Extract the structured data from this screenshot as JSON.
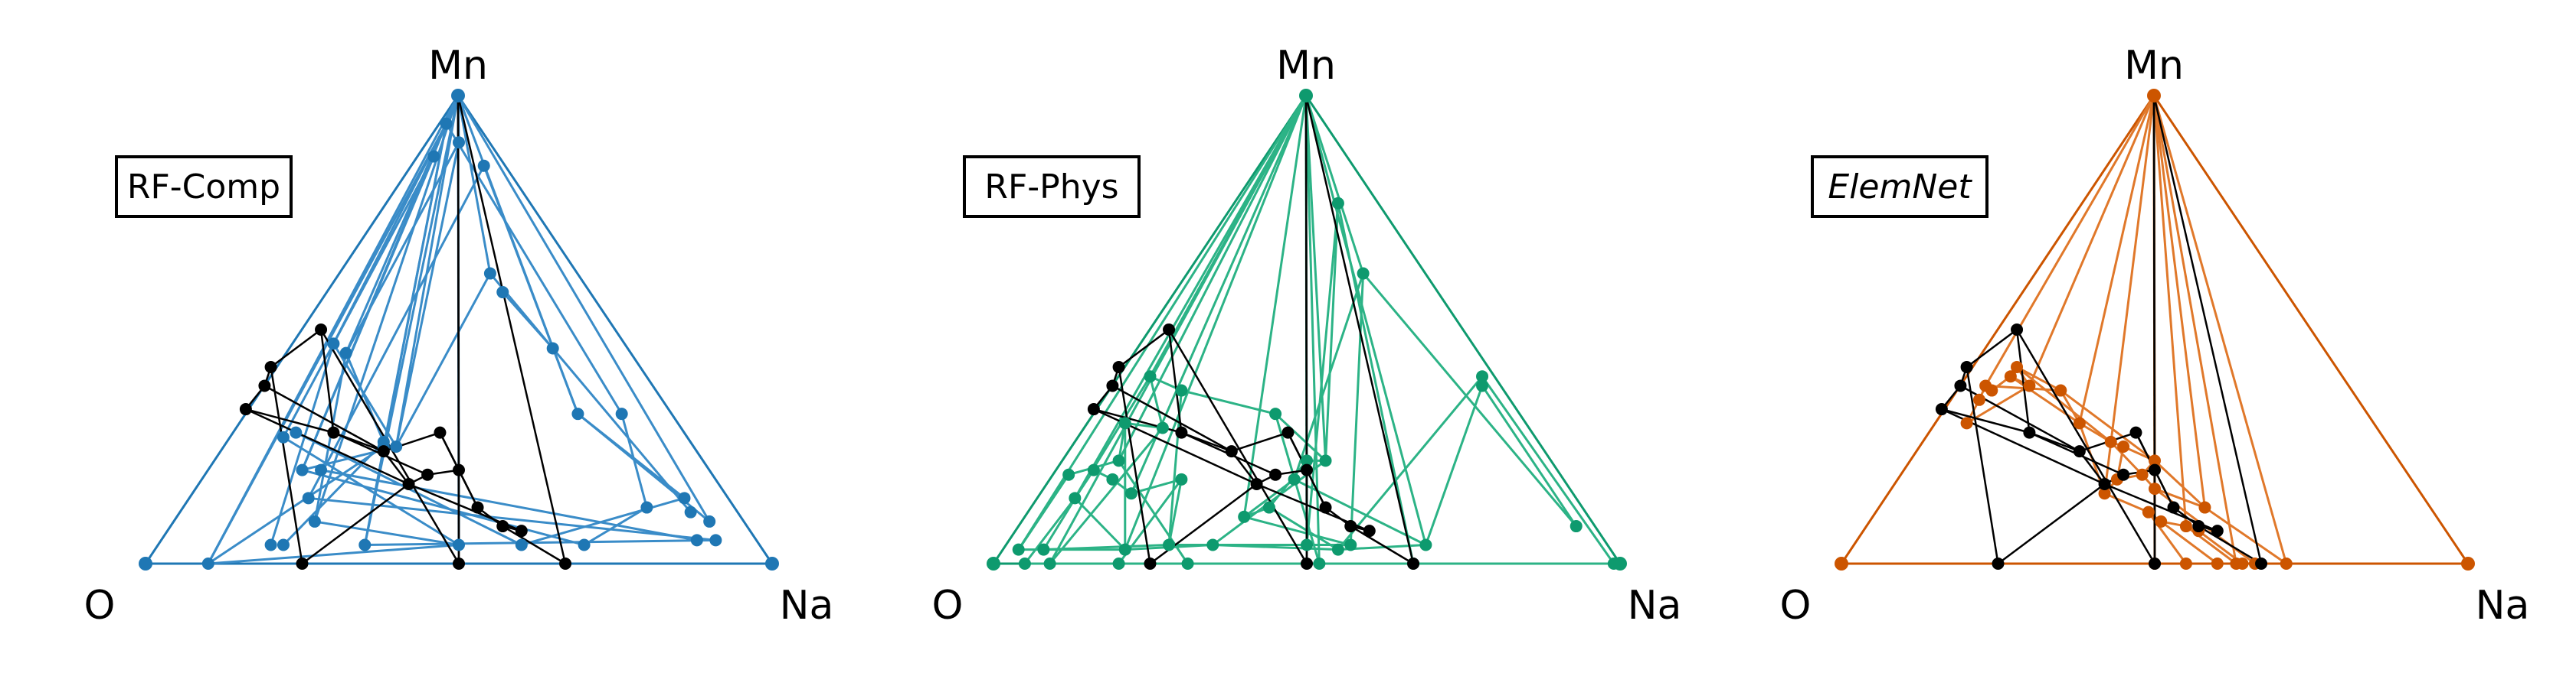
{
  "vertices": {
    "top": "Mn",
    "left": "O",
    "right": "Na"
  },
  "panels": [
    {
      "id": "rf-comp",
      "model_label": "RF-Comp",
      "italic": false,
      "color": "#1f77b4",
      "color_light": "#3a8cc8"
    },
    {
      "id": "rf-phys",
      "model_label": "RF-Phys",
      "italic": false,
      "color": "#0e9a6e",
      "color_light": "#2cb386"
    },
    {
      "id": "elemnet",
      "model_label": "ElemNet",
      "italic": true,
      "color": "#cc5500",
      "color_light": "#e0782a"
    }
  ],
  "reference_color": "#000000",
  "chart_data": {
    "type": "ternary-phase-diagram",
    "components": [
      "Mn",
      "O",
      "Na"
    ],
    "reference_hull": {
      "color": "#000000",
      "points": [
        [
          0.5,
          0.0
        ],
        [
          0.25,
          0.0
        ],
        [
          0.67,
          0.0
        ],
        [
          0.28,
          0.5
        ],
        [
          0.2,
          0.42
        ],
        [
          0.19,
          0.38
        ],
        [
          0.16,
          0.33
        ],
        [
          0.3,
          0.28
        ],
        [
          0.38,
          0.24
        ],
        [
          0.47,
          0.28
        ],
        [
          0.42,
          0.17
        ],
        [
          0.45,
          0.19
        ],
        [
          0.5,
          0.2
        ],
        [
          0.53,
          0.12
        ],
        [
          0.57,
          0.08
        ],
        [
          0.6,
          0.07
        ]
      ],
      "edges": [
        [
          0,
          3
        ],
        [
          1,
          4
        ],
        [
          2,
          14
        ],
        [
          3,
          4
        ],
        [
          3,
          7
        ],
        [
          4,
          5
        ],
        [
          5,
          6
        ],
        [
          6,
          7
        ],
        [
          7,
          8
        ],
        [
          8,
          9
        ],
        [
          8,
          10
        ],
        [
          9,
          12
        ],
        [
          10,
          11
        ],
        [
          11,
          12
        ],
        [
          12,
          13
        ],
        [
          13,
          14
        ],
        [
          14,
          15
        ],
        [
          10,
          15
        ],
        [
          1,
          10
        ],
        [
          0,
          12
        ],
        [
          5,
          8
        ],
        [
          6,
          10
        ],
        [
          7,
          11
        ],
        [
          9,
          13
        ]
      ]
    },
    "panels": [
      {
        "model": "RF-Comp",
        "points": [
          [
            0.1,
            0.0
          ],
          [
            0.2,
            0.04
          ],
          [
            0.22,
            0.04
          ],
          [
            0.35,
            0.04
          ],
          [
            0.88,
            0.05
          ],
          [
            0.91,
            0.05
          ],
          [
            0.9,
            0.09
          ],
          [
            0.87,
            0.11
          ],
          [
            0.48,
            0.94
          ],
          [
            0.5,
            0.9
          ],
          [
            0.46,
            0.87
          ],
          [
            0.54,
            0.85
          ],
          [
            0.55,
            0.62
          ],
          [
            0.57,
            0.58
          ],
          [
            0.65,
            0.46
          ],
          [
            0.69,
            0.32
          ],
          [
            0.76,
            0.32
          ],
          [
            0.3,
            0.47
          ],
          [
            0.32,
            0.45
          ],
          [
            0.38,
            0.25
          ],
          [
            0.38,
            0.26
          ],
          [
            0.4,
            0.25
          ],
          [
            0.22,
            0.27
          ],
          [
            0.24,
            0.28
          ],
          [
            0.25,
            0.2
          ],
          [
            0.28,
            0.2
          ],
          [
            0.26,
            0.14
          ],
          [
            0.27,
            0.09
          ],
          [
            0.86,
            0.14
          ],
          [
            0.8,
            0.12
          ],
          [
            0.5,
            0.04
          ],
          [
            0.6,
            0.04
          ],
          [
            0.7,
            0.04
          ]
        ],
        "edges": [
          [
            8,
            0
          ],
          [
            8,
            3
          ],
          [
            8,
            17
          ],
          [
            8,
            19
          ],
          [
            9,
            18
          ],
          [
            9,
            21
          ],
          [
            10,
            22
          ],
          [
            10,
            24
          ],
          [
            11,
            26
          ],
          [
            11,
            15
          ],
          [
            8,
            16
          ],
          [
            12,
            14
          ],
          [
            13,
            14
          ],
          [
            14,
            7
          ],
          [
            15,
            6
          ],
          [
            15,
            28
          ],
          [
            16,
            29
          ],
          [
            17,
            1
          ],
          [
            18,
            27
          ],
          [
            19,
            0
          ],
          [
            20,
            2
          ],
          [
            21,
            24
          ],
          [
            22,
            30
          ],
          [
            23,
            31
          ],
          [
            24,
            32
          ],
          [
            25,
            4
          ],
          [
            26,
            5
          ],
          [
            27,
            30
          ],
          [
            28,
            31
          ],
          [
            29,
            32
          ],
          [
            12,
            21
          ],
          [
            17,
            21
          ],
          [
            18,
            20
          ],
          [
            3,
            5
          ],
          [
            0,
            30
          ]
        ]
      },
      {
        "model": "RF-Phys",
        "points": [
          [
            0.04,
            0.03
          ],
          [
            0.08,
            0.03
          ],
          [
            0.05,
            0.0
          ],
          [
            0.09,
            0.0
          ],
          [
            0.2,
            0.0
          ],
          [
            0.31,
            0.0
          ],
          [
            0.52,
            0.0
          ],
          [
            0.67,
            0.0
          ],
          [
            0.99,
            0.0
          ],
          [
            0.21,
            0.03
          ],
          [
            0.28,
            0.04
          ],
          [
            0.35,
            0.04
          ],
          [
            0.5,
            0.04
          ],
          [
            0.55,
            0.03
          ],
          [
            0.57,
            0.04
          ],
          [
            0.69,
            0.04
          ],
          [
            0.93,
            0.08
          ],
          [
            0.55,
            0.77
          ],
          [
            0.59,
            0.62
          ],
          [
            0.78,
            0.4
          ],
          [
            0.78,
            0.38
          ],
          [
            0.13,
            0.14
          ],
          [
            0.16,
            0.2
          ],
          [
            0.19,
            0.18
          ],
          [
            0.22,
            0.15
          ],
          [
            0.3,
            0.18
          ],
          [
            0.12,
            0.19
          ],
          [
            0.2,
            0.22
          ],
          [
            0.21,
            0.3
          ],
          [
            0.27,
            0.29
          ],
          [
            0.25,
            0.4
          ],
          [
            0.3,
            0.37
          ],
          [
            0.45,
            0.32
          ],
          [
            0.53,
            0.22
          ],
          [
            0.5,
            0.22
          ],
          [
            0.44,
            0.12
          ],
          [
            0.4,
            0.1
          ],
          [
            0.48,
            0.18
          ]
        ],
        "edges": [
          [
            0,
            26
          ],
          [
            1,
            30
          ],
          [
            2,
            21
          ],
          [
            3,
            29
          ],
          [
            4,
            25
          ],
          [
            5,
            27
          ],
          [
            6,
            32
          ],
          [
            7,
            17
          ],
          [
            8,
            19
          ],
          [
            9,
            28
          ],
          [
            10,
            31
          ],
          [
            11,
            33
          ],
          [
            12,
            34
          ],
          [
            13,
            35
          ],
          [
            14,
            36
          ],
          [
            15,
            37
          ],
          [
            16,
            18
          ],
          [
            17,
            12
          ],
          [
            18,
            14
          ],
          [
            19,
            13
          ],
          [
            20,
            15
          ],
          [
            21,
            22
          ],
          [
            22,
            23
          ],
          [
            23,
            24
          ],
          [
            24,
            25
          ],
          [
            26,
            27
          ],
          [
            27,
            28
          ],
          [
            28,
            29
          ],
          [
            29,
            30
          ],
          [
            30,
            31
          ],
          [
            31,
            32
          ],
          [
            32,
            33
          ],
          [
            33,
            34
          ],
          [
            34,
            35
          ],
          [
            35,
            36
          ],
          [
            36,
            37
          ],
          [
            0,
            9
          ],
          [
            1,
            10
          ],
          [
            2,
            3
          ],
          [
            3,
            4
          ],
          [
            4,
            5
          ],
          [
            5,
            6
          ],
          [
            6,
            7
          ],
          [
            7,
            8
          ],
          [
            9,
            11
          ],
          [
            10,
            12
          ],
          [
            11,
            13
          ],
          [
            12,
            14
          ],
          [
            13,
            15
          ],
          [
            20,
            16
          ],
          [
            21,
            9
          ],
          [
            25,
            10
          ],
          [
            26,
            0
          ],
          [
            17,
            33
          ],
          [
            18,
            37
          ]
        ]
      },
      {
        "model": "ElemNet",
        "points": [
          [
            0.5,
            0.0
          ],
          [
            0.55,
            0.0
          ],
          [
            0.6,
            0.0
          ],
          [
            0.63,
            0.0
          ],
          [
            0.64,
            0.0
          ],
          [
            0.66,
            0.0
          ],
          [
            0.71,
            0.0
          ],
          [
            0.2,
            0.3
          ],
          [
            0.22,
            0.35
          ],
          [
            0.23,
            0.38
          ],
          [
            0.24,
            0.37
          ],
          [
            0.27,
            0.4
          ],
          [
            0.3,
            0.38
          ],
          [
            0.28,
            0.42
          ],
          [
            0.35,
            0.37
          ],
          [
            0.38,
            0.3
          ],
          [
            0.43,
            0.26
          ],
          [
            0.45,
            0.25
          ],
          [
            0.5,
            0.22
          ],
          [
            0.48,
            0.19
          ],
          [
            0.44,
            0.18
          ],
          [
            0.42,
            0.15
          ],
          [
            0.49,
            0.11
          ],
          [
            0.51,
            0.09
          ],
          [
            0.55,
            0.08
          ],
          [
            0.57,
            0.07
          ],
          [
            0.5,
            0.16
          ],
          [
            0.58,
            0.12
          ]
        ],
        "edges": [
          [
            0,
            18
          ],
          [
            1,
            22
          ],
          [
            2,
            23
          ],
          [
            3,
            24
          ],
          [
            4,
            25
          ],
          [
            5,
            26
          ],
          [
            6,
            27
          ],
          [
            7,
            8
          ],
          [
            8,
            9
          ],
          [
            9,
            10
          ],
          [
            10,
            11
          ],
          [
            11,
            12
          ],
          [
            12,
            13
          ],
          [
            13,
            14
          ],
          [
            14,
            15
          ],
          [
            15,
            16
          ],
          [
            16,
            17
          ],
          [
            17,
            18
          ],
          [
            18,
            19
          ],
          [
            19,
            20
          ],
          [
            20,
            21
          ],
          [
            21,
            22
          ],
          [
            22,
            23
          ],
          [
            23,
            24
          ],
          [
            24,
            25
          ],
          [
            7,
            12
          ],
          [
            9,
            14
          ],
          [
            11,
            15
          ],
          [
            13,
            16
          ],
          [
            14,
            18
          ],
          [
            16,
            19
          ],
          [
            17,
            20
          ],
          [
            15,
            21
          ],
          [
            19,
            26
          ],
          [
            26,
            27
          ],
          [
            18,
            27
          ]
        ]
      }
    ]
  }
}
